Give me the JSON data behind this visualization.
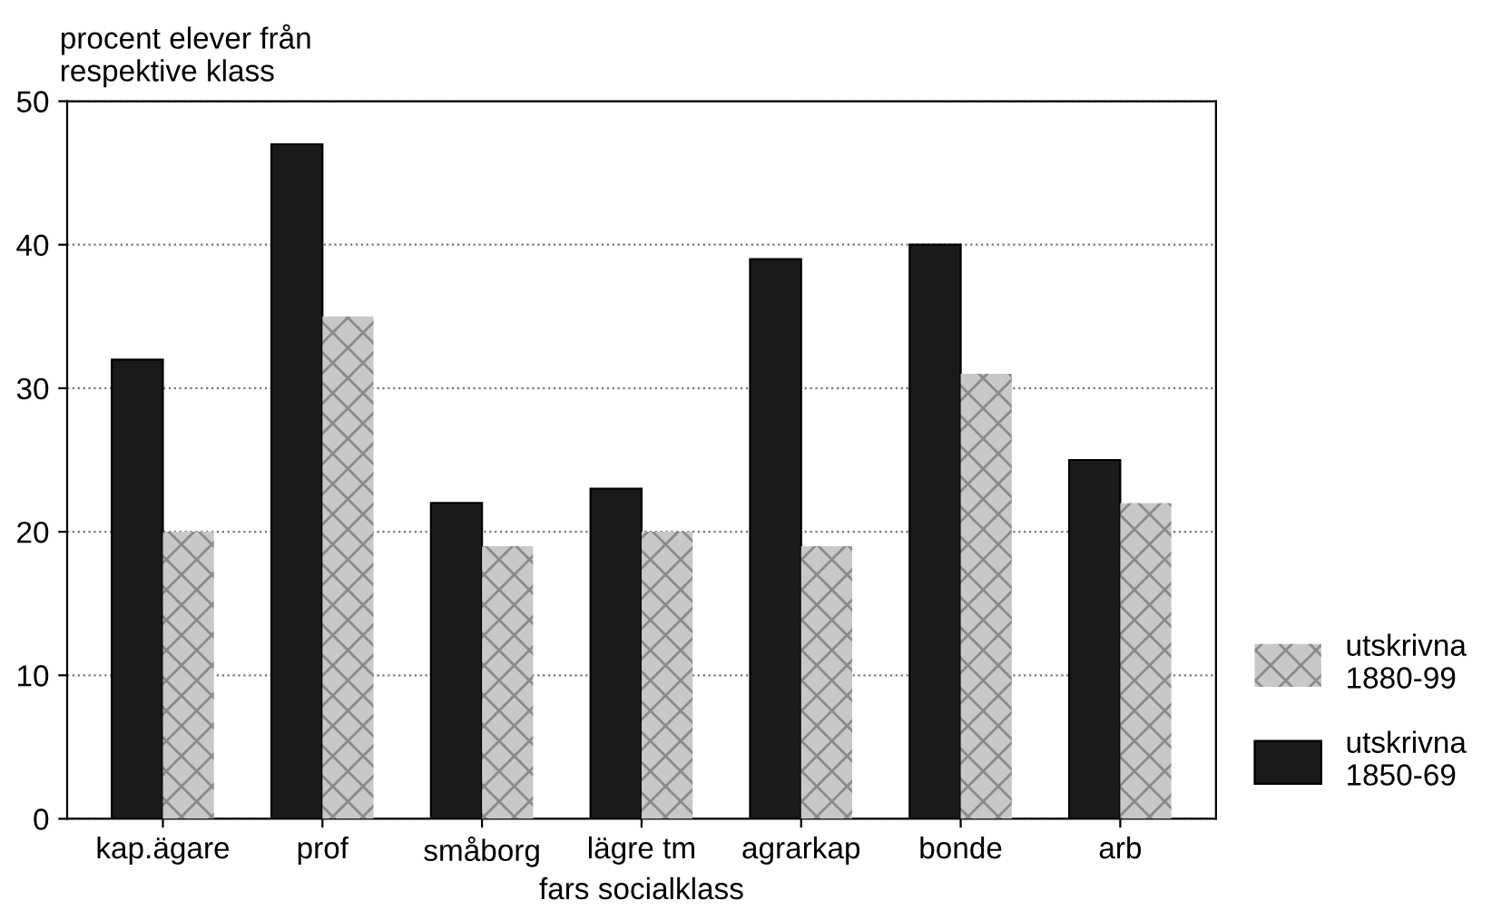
{
  "chart_data": {
    "type": "bar",
    "ylabel": "procent elever från\nrespektive klass",
    "xlabel": "fars socialklass",
    "categories": [
      "kap.ägare",
      "prof",
      "småborg",
      "lägre tm",
      "agrarkap",
      "bonde",
      "arb"
    ],
    "series": [
      {
        "name": "utskrivna\n1850-69",
        "color": "#1a1a1a",
        "values": [
          32,
          47,
          22,
          23,
          39,
          40,
          25
        ]
      },
      {
        "name": "utskrivna\n1880-99",
        "color": "#c8c8c8",
        "values": [
          20,
          35,
          19,
          20,
          19,
          31,
          22
        ]
      }
    ],
    "ylim": [
      0,
      50
    ],
    "yticks": [
      0,
      10,
      20,
      30,
      40,
      50
    ],
    "grid": "y",
    "legend": "bottom right"
  }
}
